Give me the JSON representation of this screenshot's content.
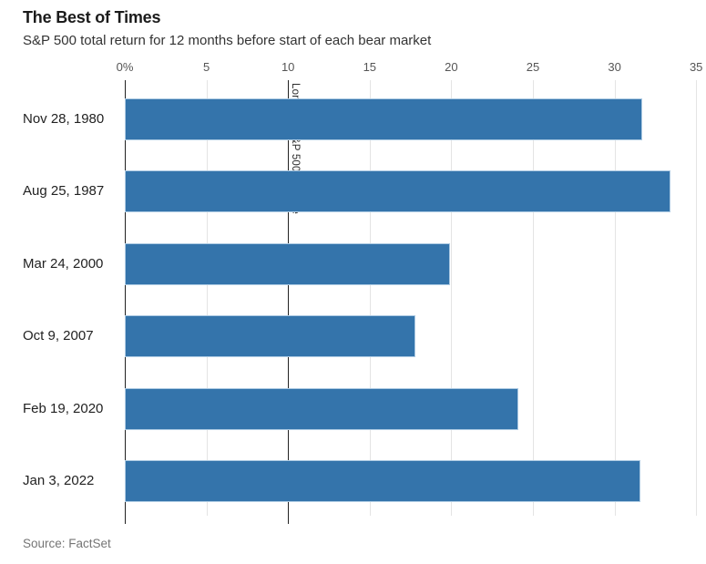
{
  "chart_data": {
    "type": "bar",
    "orientation": "horizontal",
    "title": "The Best of Times",
    "subtitle": "S&P 500 total return for 12 months before start of each bear market",
    "source": "Source: FactSet",
    "categories": [
      "Nov 28, 1980",
      "Aug 25, 1987",
      "Mar 24, 2000",
      "Oct 9, 2007",
      "Feb 19, 2020",
      "Jan 3, 2022"
    ],
    "values": [
      31.7,
      33.4,
      19.9,
      17.8,
      24.1,
      31.6
    ],
    "value_unit": "percent",
    "xlim": [
      0,
      35
    ],
    "x_ticks": [
      0,
      5,
      10,
      15,
      20,
      25,
      30,
      35
    ],
    "x_tick_labels": [
      "0%",
      "5",
      "10",
      "15",
      "20",
      "25",
      "30",
      "35"
    ],
    "reference_line": {
      "value": 10,
      "label": "Long-run S&P 500 average"
    },
    "grid": true,
    "legend": "none",
    "colors": {
      "bar": "#3474ab",
      "bar_border": "#aecbe3",
      "gridline": "#e4e4e4",
      "axis_line": "#222222",
      "tick_label": "#555555",
      "category_label": "#222222",
      "title": "#1b1b1b",
      "subtitle": "#333333",
      "source": "#757575"
    }
  }
}
